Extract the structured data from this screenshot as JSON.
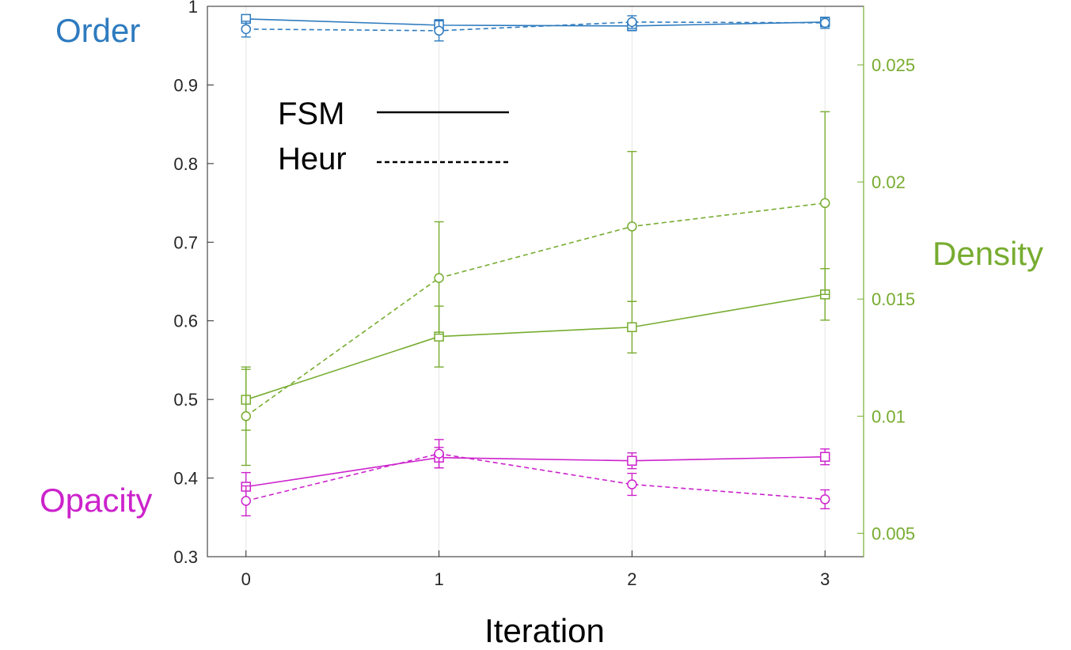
{
  "chart_data": {
    "type": "line",
    "x": [
      0,
      1,
      2,
      3
    ],
    "xticks": [
      "0",
      "1",
      "2",
      "3"
    ],
    "xlabel": "Iteration",
    "xlim": [
      -0.2,
      3.2
    ],
    "ylim_left": [
      0.3,
      1.0
    ],
    "yticks_left": [
      "0.3",
      "0.4",
      "0.5",
      "0.6",
      "0.7",
      "0.8",
      "0.9",
      "1"
    ],
    "ylim_right": [
      0.004,
      0.0275
    ],
    "yticks_right": [
      "0.005",
      "0.01",
      "0.015",
      "0.02",
      "0.025"
    ],
    "label_order": "Order",
    "label_opacity": "Opacity",
    "label_density": "Density",
    "legend": {
      "solid": "FSM",
      "dashed": "Heur"
    },
    "grid": "vertical",
    "colors": {
      "order": "#2e7bbf",
      "density": "#77ac30",
      "opacity": "#cc22cc"
    },
    "series": [
      {
        "group": "order",
        "method": "solid",
        "axis": "left",
        "marker": "square",
        "values": [
          0.984,
          0.976,
          0.975,
          0.98
        ],
        "errors": [
          0.004,
          0.007,
          0.006,
          0.006
        ]
      },
      {
        "group": "order",
        "method": "dashed",
        "axis": "left",
        "marker": "circle",
        "values": [
          0.971,
          0.969,
          0.98,
          0.979
        ],
        "errors": [
          0.01,
          0.013,
          0.008,
          0.007
        ]
      },
      {
        "group": "density",
        "method": "solid",
        "axis": "right",
        "marker": "square",
        "values": [
          0.0107,
          0.0134,
          0.0138,
          0.0152
        ],
        "errors": [
          0.0013,
          0.0013,
          0.0011,
          0.0011
        ]
      },
      {
        "group": "density",
        "method": "dashed",
        "axis": "right",
        "marker": "circle",
        "values": [
          0.01,
          0.0159,
          0.0181,
          0.0191
        ],
        "errors": [
          0.0021,
          0.0024,
          0.0032,
          0.0039
        ]
      },
      {
        "group": "opacity",
        "method": "solid",
        "axis": "left",
        "marker": "square",
        "values": [
          0.389,
          0.426,
          0.422,
          0.427
        ],
        "errors": [
          0.018,
          0.013,
          0.01,
          0.01
        ]
      },
      {
        "group": "opacity",
        "method": "dashed",
        "axis": "left",
        "marker": "circle",
        "values": [
          0.371,
          0.431,
          0.392,
          0.373
        ],
        "errors": [
          0.019,
          0.018,
          0.014,
          0.012
        ]
      }
    ]
  }
}
